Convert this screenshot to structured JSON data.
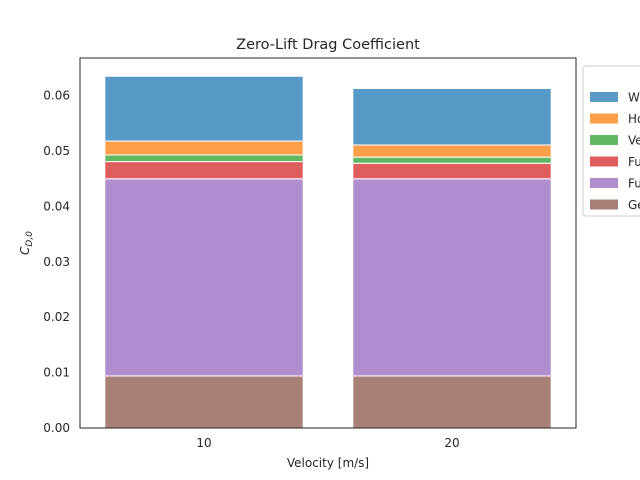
{
  "chart_data": {
    "type": "bar",
    "stacked": true,
    "title": "Zero-Lift Drag Coefficient",
    "xlabel": "Velocity [m/s]",
    "ylabel_main": "C",
    "ylabel_sub": "D,0",
    "categories": [
      "10",
      "20"
    ],
    "ylim": [
      0,
      0.0668
    ],
    "yticks": [
      "0.00",
      "0.01",
      "0.02",
      "0.03",
      "0.04",
      "0.05",
      "0.06"
    ],
    "ytick_values": [
      0,
      0.01,
      0.02,
      0.03,
      0.04,
      0.05,
      0.06
    ],
    "grid": false,
    "legend_position": "outside-right",
    "series": [
      {
        "name": "Ge",
        "color": "#8c564b",
        "values": [
          0.0094,
          0.0094
        ]
      },
      {
        "name": "Fu",
        "color": "#9467bd",
        "values": [
          0.0356,
          0.0356
        ]
      },
      {
        "name": "Fu",
        "color": "#d62728",
        "values": [
          0.0031,
          0.0028
        ]
      },
      {
        "name": "Ve",
        "color": "#2ca02c",
        "values": [
          0.0012,
          0.0011
        ]
      },
      {
        "name": "Ho",
        "color": "#ff7f0e",
        "values": [
          0.0025,
          0.0022
        ]
      },
      {
        "name": "W",
        "color": "#1f77b4",
        "values": [
          0.0117,
          0.0102
        ]
      }
    ]
  }
}
